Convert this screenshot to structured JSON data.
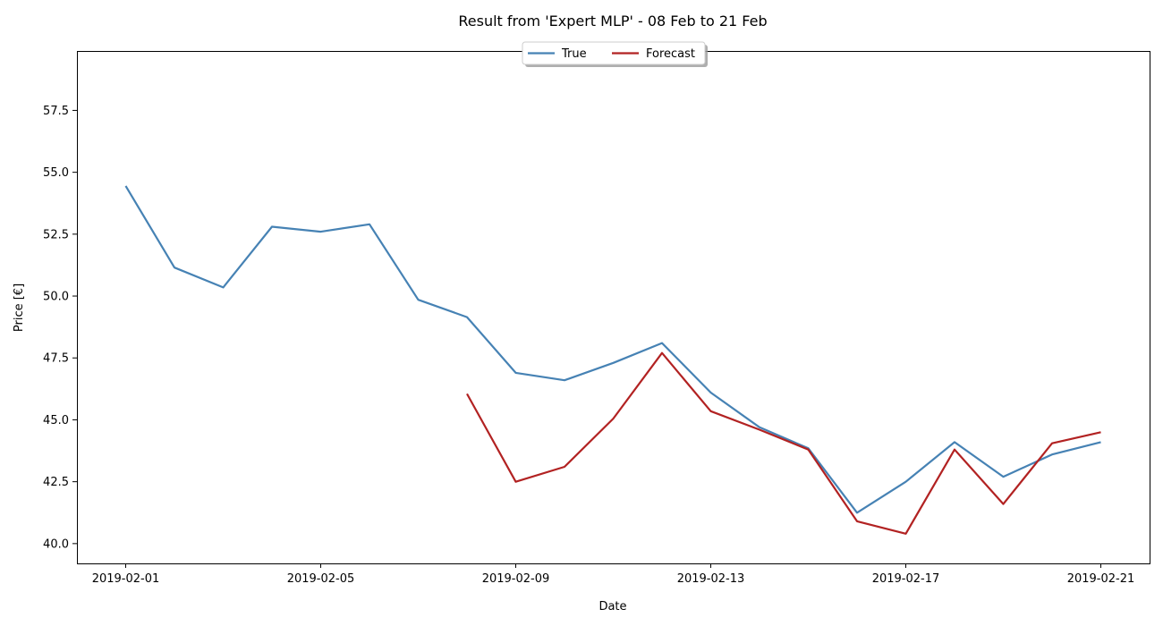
{
  "chart_data": {
    "type": "line",
    "title": "Result from 'Expert MLP' - 08 Feb to 21 Feb",
    "xlabel": "Date",
    "ylabel": "Price [€]",
    "xlim": [
      "2019-01-31",
      "2019-02-22"
    ],
    "ylim": [
      39.2,
      59.9
    ],
    "x_ticks": [
      "2019-02-01",
      "2019-02-05",
      "2019-02-09",
      "2019-02-13",
      "2019-02-17",
      "2019-02-21"
    ],
    "y_ticks": [
      40.0,
      42.5,
      45.0,
      47.5,
      50.0,
      52.5,
      55.0,
      57.5
    ],
    "grid": false,
    "legend_position": "top-center",
    "series": [
      {
        "name": "True",
        "color": "#4682b4",
        "x": [
          "2019-02-01",
          "2019-02-02",
          "2019-02-03",
          "2019-02-04",
          "2019-02-05",
          "2019-02-06",
          "2019-02-07",
          "2019-02-08",
          "2019-02-09",
          "2019-02-10",
          "2019-02-11",
          "2019-02-12",
          "2019-02-13",
          "2019-02-14",
          "2019-02-15",
          "2019-02-16",
          "2019-02-17",
          "2019-02-18",
          "2019-02-19",
          "2019-02-20",
          "2019-02-21"
        ],
        "values": [
          54.45,
          51.15,
          50.35,
          52.8,
          52.6,
          52.9,
          49.85,
          49.15,
          46.9,
          46.6,
          47.3,
          48.1,
          46.1,
          44.7,
          43.85,
          41.25,
          42.5,
          44.1,
          42.7,
          43.6,
          44.1
        ]
      },
      {
        "name": "Forecast",
        "color": "#b22222",
        "x": [
          "2019-02-08",
          "2019-02-09",
          "2019-02-10",
          "2019-02-11",
          "2019-02-12",
          "2019-02-13",
          "2019-02-14",
          "2019-02-15",
          "2019-02-16",
          "2019-02-17",
          "2019-02-18",
          "2019-02-19",
          "2019-02-20",
          "2019-02-21"
        ],
        "values": [
          46.05,
          42.5,
          43.1,
          45.05,
          47.7,
          45.35,
          44.6,
          43.8,
          40.9,
          40.4,
          43.8,
          41.6,
          44.05,
          44.5
        ]
      }
    ]
  }
}
